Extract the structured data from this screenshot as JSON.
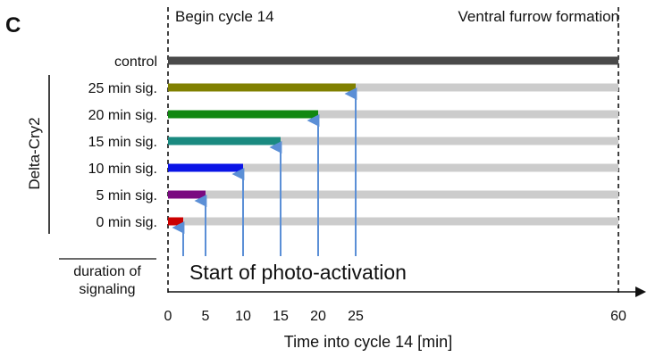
{
  "panel_letter": "C",
  "top_left_label": "Begin cycle 14",
  "top_right_label": "Ventral furrow formation",
  "group_label": "Delta-Cry2",
  "duration_label_line1": "duration of",
  "duration_label_line2": "signaling",
  "annotation": "Start of photo-activation",
  "xlabel": "Time into cycle 14 [min]",
  "colors": {
    "control": "#4a4a4a",
    "background_bar": "#cccccc",
    "arrow": "#5b8fd6",
    "axis": "#111111"
  },
  "chart_data": {
    "type": "bar",
    "orientation": "horizontal",
    "xlabel": "Time into cycle 14 [min]",
    "xlim": [
      0,
      60
    ],
    "xticks": [
      0,
      5,
      10,
      15,
      20,
      25,
      60
    ],
    "rows": [
      {
        "label": "control",
        "signal_end": 60,
        "color": "#4a4a4a"
      },
      {
        "label": "25 min sig.",
        "signal_end": 25,
        "color": "#808000"
      },
      {
        "label": "20 min sig.",
        "signal_end": 20,
        "color": "#118811"
      },
      {
        "label": "15 min sig.",
        "signal_end": 15,
        "color": "#1a8a80"
      },
      {
        "label": "10 min sig.",
        "signal_end": 10,
        "color": "#0a14e6"
      },
      {
        "label": "5 min sig.",
        "signal_end": 5,
        "color": "#7a0a80"
      },
      {
        "label": "0 min sig.",
        "signal_end": 0,
        "color": "#cc0000"
      }
    ]
  }
}
